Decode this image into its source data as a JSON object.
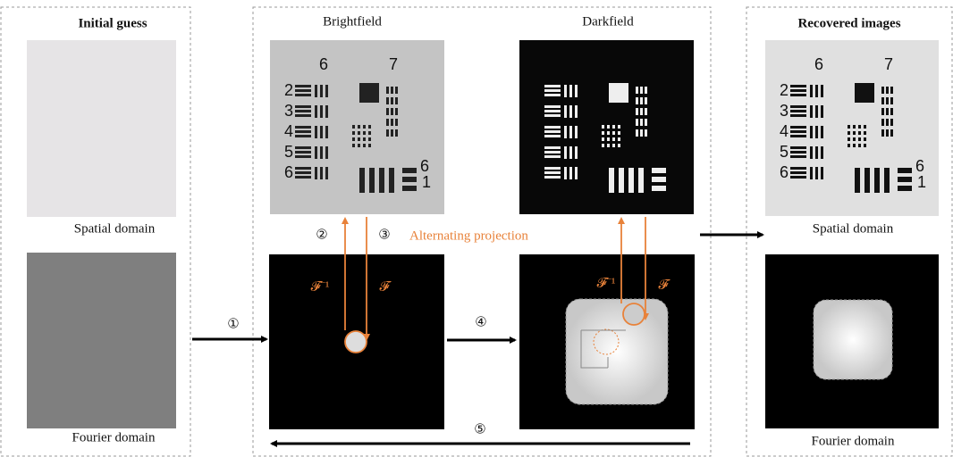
{
  "panels": {
    "initial": {
      "title": "Initial guess",
      "spatial_label": "Spatial domain",
      "fourier_label": "Fourier domain"
    },
    "measured": {
      "brightfield_title": "Brightfield",
      "darkfield_title": "Darkfield",
      "projection_label": "Alternating projection"
    },
    "recovered": {
      "title": "Recovered images",
      "spatial_label": "Spatial domain",
      "fourier_label": "Fourier domain"
    }
  },
  "steps": [
    "①",
    "②",
    "③",
    "④",
    "⑤"
  ],
  "operators": {
    "inverse": "𝓕⁻¹",
    "forward": "𝓕"
  },
  "target_labels": {
    "groups": [
      "6",
      "7"
    ],
    "rows": [
      "2",
      "3",
      "4",
      "5",
      "6"
    ],
    "side": [
      "6",
      "1"
    ]
  }
}
